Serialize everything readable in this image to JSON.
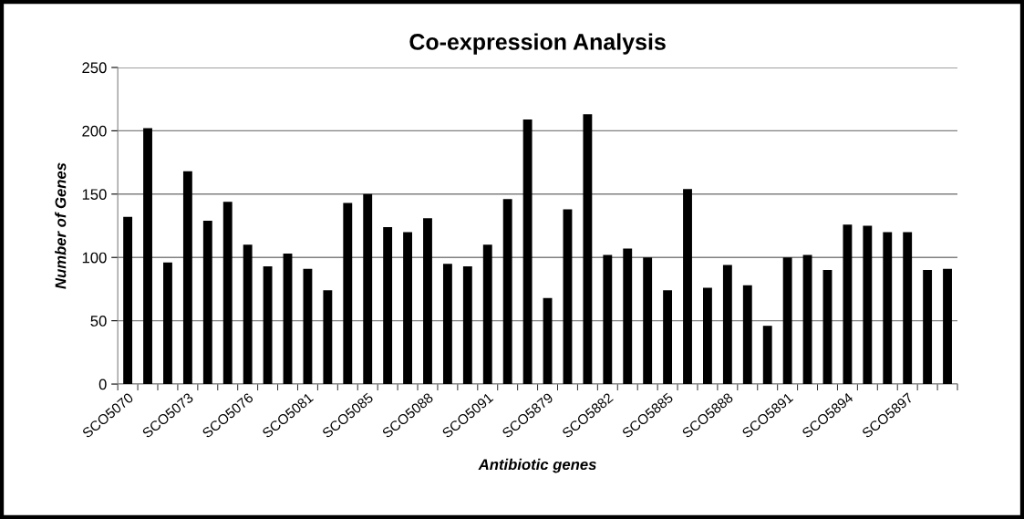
{
  "chart_data": {
    "type": "bar",
    "title": "Co-expression Analysis",
    "xlabel": "Antibiotic genes",
    "ylabel": "Number of Genes",
    "categories": [
      "SCO5070",
      null,
      null,
      "SCO5073",
      null,
      null,
      "SCO5076",
      null,
      null,
      "SCO5081",
      null,
      null,
      "SCO5085",
      null,
      null,
      "SCO5088",
      null,
      null,
      "SCO5091",
      null,
      null,
      "SCO5879",
      null,
      null,
      "SCO5882",
      null,
      null,
      "SCO5885",
      null,
      null,
      "SCO5888",
      null,
      null,
      "SCO5891",
      null,
      null,
      "SCO5894",
      null,
      null,
      "SCO5897",
      null,
      null
    ],
    "values": [
      132,
      202,
      96,
      168,
      129,
      144,
      110,
      93,
      103,
      91,
      74,
      143,
      150,
      124,
      120,
      131,
      95,
      93,
      110,
      146,
      209,
      68,
      138,
      213,
      102,
      107,
      100,
      74,
      154,
      76,
      94,
      78,
      46,
      100,
      102,
      90,
      126,
      125,
      120,
      120,
      90,
      91
    ],
    "color": "#000000",
    "ylim": [
      0,
      250
    ],
    "yticks": [
      0,
      50,
      100,
      150,
      200,
      250
    ],
    "grid": "y"
  }
}
